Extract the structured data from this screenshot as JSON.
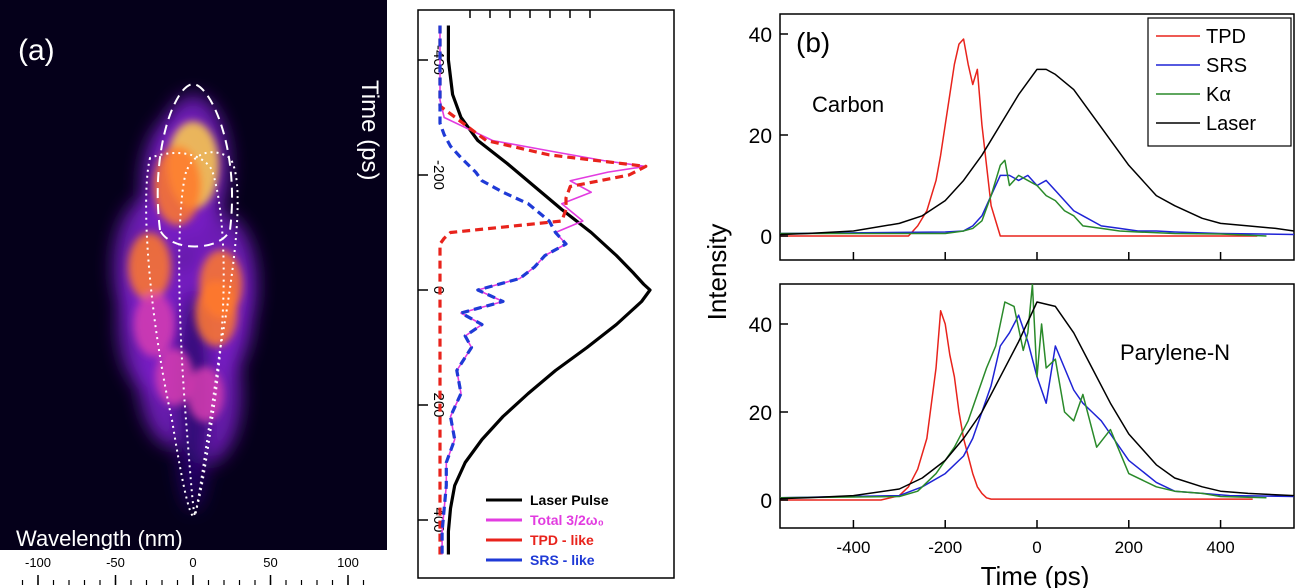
{
  "panel_a": {
    "label": "(a)",
    "image": {
      "xlabel": "Wavelength (nm)",
      "xticks": [
        -100,
        -50,
        0,
        50,
        100
      ],
      "colormap": [
        "#05001a",
        "#2a0670",
        "#7a1fc8",
        "#d63cb0",
        "#ff7a2a",
        "#ffd04a"
      ]
    },
    "profile": {
      "time_label": "Time (ps)",
      "time_ticks": [
        -400,
        -200,
        0,
        200,
        400
      ],
      "legend": [
        "Laser Pulse",
        "Total 3/2ω₀",
        "TPD - like",
        "SRS - like"
      ]
    }
  },
  "panel_b": {
    "label": "(b)",
    "ylabel": "Intensity",
    "xlabel": "Time (ps)",
    "xticks": [
      -400,
      -200,
      0,
      200,
      400
    ],
    "top_title": "Carbon",
    "bottom_title": "Parylene-N",
    "top_yticks": [
      0,
      20,
      40
    ],
    "bottom_yticks": [
      0,
      20,
      40
    ],
    "legend": [
      "TPD",
      "SRS",
      "Kα",
      "Laser"
    ]
  },
  "colors": {
    "tpd": "#e8231c",
    "srs": "#1f23d6",
    "ka": "#2a8a2a",
    "laser": "#000000",
    "total": "#e23ce0",
    "tpd_dash": "#e8231c",
    "srs_dash": "#1f3ad6"
  },
  "chart_data": [
    {
      "type": "heatmap",
      "panel": "a-image",
      "xlabel": "Wavelength (nm)",
      "xlim": [
        -120,
        120
      ],
      "ylim": [
        -450,
        450
      ],
      "ylabel_shared": "Time (ps)",
      "blobs": [
        {
          "lambda": 0,
          "t": -215,
          "amp": 1.0
        },
        {
          "lambda": -10,
          "t": -180,
          "amp": 0.8
        },
        {
          "lambda": -28,
          "t": -40,
          "amp": 0.55
        },
        {
          "lambda": 18,
          "t": -10,
          "amp": 0.55
        },
        {
          "lambda": -25,
          "t": 60,
          "amp": 0.45
        },
        {
          "lambda": 15,
          "t": 40,
          "amp": 0.5
        },
        {
          "lambda": -12,
          "t": 150,
          "amp": 0.3
        },
        {
          "lambda": 8,
          "t": 180,
          "amp": 0.25
        }
      ]
    },
    {
      "type": "line",
      "panel": "a-profile",
      "xlabel": "Time (ps)",
      "xlim": [
        -460,
        460
      ],
      "series": [
        {
          "name": "Laser Pulse",
          "x": [
            -460,
            -400,
            -340,
            -300,
            -260,
            -220,
            -180,
            -140,
            -100,
            -60,
            -30,
            -10,
            0,
            20,
            60,
            100,
            140,
            180,
            220,
            260,
            300,
            340,
            380,
            420,
            460
          ],
          "y": [
            0.04,
            0.04,
            0.06,
            0.1,
            0.18,
            0.32,
            0.45,
            0.58,
            0.72,
            0.84,
            0.92,
            0.97,
            1.0,
            0.96,
            0.84,
            0.7,
            0.55,
            0.42,
            0.3,
            0.2,
            0.12,
            0.07,
            0.05,
            0.04,
            0.04
          ]
        },
        {
          "name": "Total 3/2ω₀",
          "x": [
            -460,
            -330,
            -300,
            -260,
            -240,
            -225,
            -215,
            -205,
            -190,
            -170,
            -150,
            -120,
            -100,
            -80,
            -60,
            -40,
            -20,
            0,
            20,
            40,
            60,
            80,
            100,
            140,
            180,
            220,
            260,
            300,
            340,
            380,
            420,
            460
          ],
          "y": [
            0.0,
            0.0,
            0.02,
            0.25,
            0.55,
            0.78,
            0.98,
            0.8,
            0.62,
            0.72,
            0.58,
            0.68,
            0.55,
            0.6,
            0.5,
            0.45,
            0.38,
            0.18,
            0.3,
            0.1,
            0.2,
            0.12,
            0.15,
            0.08,
            0.1,
            0.05,
            0.07,
            0.03,
            0.03,
            0.02,
            0.01,
            0.01
          ]
        },
        {
          "name": "TPD - like",
          "x": [
            -460,
            -320,
            -260,
            -235,
            -215,
            -200,
            -180,
            -160,
            -140,
            -120,
            -100,
            -90,
            -80,
            0,
            200,
            460
          ],
          "y": [
            0.0,
            0.0,
            0.22,
            0.52,
            0.98,
            0.9,
            0.62,
            0.6,
            0.6,
            0.58,
            0.05,
            0.02,
            0.0,
            0.0,
            0.0,
            0.0
          ]
        },
        {
          "name": "SRS - like",
          "x": [
            -460,
            -290,
            -270,
            -250,
            -230,
            -205,
            -190,
            -170,
            -150,
            -120,
            -100,
            -80,
            -60,
            -40,
            -20,
            0,
            20,
            40,
            60,
            80,
            100,
            140,
            180,
            220,
            260,
            300,
            340,
            380,
            420,
            460
          ],
          "y": [
            0.0,
            0.0,
            0.02,
            0.05,
            0.1,
            0.17,
            0.2,
            0.3,
            0.42,
            0.52,
            0.55,
            0.6,
            0.5,
            0.45,
            0.38,
            0.18,
            0.3,
            0.1,
            0.2,
            0.12,
            0.15,
            0.08,
            0.1,
            0.05,
            0.07,
            0.03,
            0.03,
            0.02,
            0.01,
            0.01
          ]
        }
      ]
    },
    {
      "type": "line",
      "panel": "b-top",
      "title": "Carbon",
      "xlabel": "Time (ps)",
      "ylabel": "Intensity",
      "xlim": [
        -560,
        560
      ],
      "ylim": [
        -2,
        40
      ],
      "series": [
        {
          "name": "TPD",
          "x": [
            -560,
            -280,
            -260,
            -240,
            -220,
            -210,
            -200,
            -190,
            -180,
            -170,
            -160,
            -150,
            -140,
            -130,
            -120,
            -110,
            -100,
            -90,
            -80,
            -70,
            480
          ],
          "y": [
            0,
            0,
            2,
            5,
            11,
            16,
            22,
            28,
            34,
            38,
            39,
            34,
            30,
            33,
            22,
            14,
            6,
            3,
            0,
            0,
            0
          ]
        },
        {
          "name": "SRS",
          "x": [
            -560,
            -200,
            -160,
            -140,
            -120,
            -100,
            -80,
            -60,
            -40,
            -20,
            0,
            20,
            40,
            60,
            80,
            100,
            140,
            180,
            220,
            260,
            300,
            400,
            560
          ],
          "y": [
            0.5,
            0.8,
            1,
            2,
            4,
            8,
            12,
            12,
            11,
            12,
            10,
            11,
            9,
            7,
            5,
            4,
            2,
            1.5,
            1,
            1,
            0.8,
            0.5,
            0.3
          ]
        },
        {
          "name": "Kα",
          "x": [
            -560,
            -200,
            -160,
            -140,
            -120,
            -100,
            -80,
            -70,
            -60,
            -40,
            -20,
            0,
            20,
            40,
            60,
            80,
            100,
            140,
            180,
            220,
            300,
            400,
            500
          ],
          "y": [
            0.5,
            0.5,
            1,
            1.5,
            3,
            8,
            14,
            15,
            10,
            12,
            11,
            10,
            8,
            7,
            5,
            4,
            2,
            1.5,
            1,
            0.8,
            0.5,
            0.4,
            0
          ]
        },
        {
          "name": "Laser",
          "x": [
            -560,
            -500,
            -400,
            -300,
            -250,
            -200,
            -160,
            -120,
            -80,
            -40,
            0,
            20,
            40,
            80,
            120,
            160,
            200,
            260,
            300,
            360,
            400,
            460,
            520,
            560
          ],
          "y": [
            0.3,
            0.5,
            1,
            2.5,
            4,
            7,
            11,
            16,
            22,
            28,
            33,
            33,
            32,
            29,
            24,
            19,
            14,
            8,
            6,
            3.5,
            2.5,
            2,
            1.5,
            1
          ]
        }
      ]
    },
    {
      "type": "line",
      "panel": "b-bottom",
      "title": "Parylene-N",
      "xlabel": "Time (ps)",
      "ylabel": "Intensity",
      "xlim": [
        -560,
        560
      ],
      "ylim": [
        -2,
        50
      ],
      "series": [
        {
          "name": "TPD",
          "x": [
            -560,
            -340,
            -300,
            -280,
            -260,
            -240,
            -230,
            -220,
            -210,
            -200,
            -190,
            -180,
            -170,
            -160,
            -150,
            -140,
            -130,
            -120,
            -110,
            -100,
            470
          ],
          "y": [
            0,
            0,
            1,
            3,
            7,
            14,
            22,
            30,
            43,
            40,
            33,
            28,
            20,
            14,
            10,
            6,
            3,
            1.5,
            0.5,
            0.2,
            0.2
          ]
        },
        {
          "name": "SRS",
          "x": [
            -560,
            -300,
            -250,
            -200,
            -160,
            -140,
            -120,
            -100,
            -80,
            -60,
            -40,
            -20,
            0,
            20,
            40,
            60,
            80,
            100,
            120,
            140,
            160,
            200,
            260,
            300,
            360,
            420,
            560
          ],
          "y": [
            0.5,
            1,
            3,
            6,
            10,
            14,
            20,
            26,
            35,
            38,
            42,
            36,
            28,
            22,
            35,
            30,
            25,
            22,
            20,
            18,
            15,
            9,
            4,
            2,
            1.5,
            1,
            0.8
          ]
        },
        {
          "name": "Kα",
          "x": [
            -560,
            -300,
            -260,
            -220,
            -180,
            -150,
            -130,
            -110,
            -90,
            -70,
            -50,
            -30,
            -20,
            -10,
            0,
            10,
            20,
            40,
            60,
            80,
            100,
            130,
            160,
            200,
            260,
            300,
            360,
            400,
            500
          ],
          "y": [
            0.5,
            0.8,
            2,
            6,
            12,
            18,
            24,
            30,
            35,
            45,
            44,
            34,
            38,
            49,
            28,
            40,
            30,
            32,
            20,
            18,
            24,
            12,
            16,
            6,
            3,
            2,
            1.5,
            0.8,
            0.5
          ]
        },
        {
          "name": "Laser",
          "x": [
            -560,
            -500,
            -400,
            -300,
            -250,
            -200,
            -160,
            -120,
            -80,
            -40,
            0,
            40,
            80,
            120,
            160,
            200,
            260,
            300,
            360,
            400,
            460,
            520,
            560
          ],
          "y": [
            0.3,
            0.5,
            1,
            2.5,
            5,
            9,
            14,
            20,
            28,
            36,
            45,
            44,
            38,
            30,
            22,
            15,
            8,
            5,
            3,
            2,
            1.5,
            1.2,
            1
          ]
        }
      ]
    }
  ]
}
